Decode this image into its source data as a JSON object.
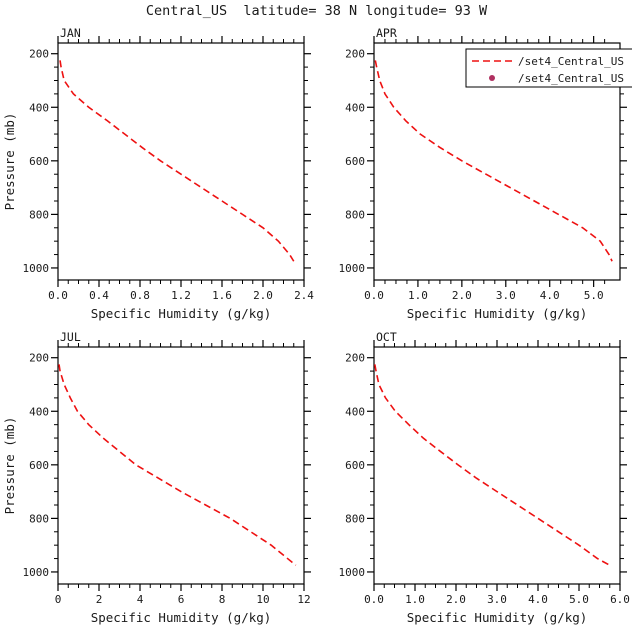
{
  "title": "Central_US  latitude= 38 N longitude= 93 W",
  "style": {
    "curve": "#ee1111",
    "legend_marker": "#b03060",
    "axis": "#000000",
    "text": "#1a1a1a",
    "background": "#ffffff"
  },
  "legend": {
    "panel_label": "APR",
    "entries": [
      {
        "marker": "dashed-line",
        "label": "/set4_Central_US"
      },
      {
        "marker": "dot",
        "label": "/set4_Central_US"
      }
    ]
  },
  "chart_data": [
    {
      "type": "line",
      "panel_label": "JAN",
      "xlabel": "Specific Humidity (g/kg)",
      "ylabel": "Pressure (mb)",
      "xlim": [
        0,
        2.4
      ],
      "xticks": [
        0,
        0.4,
        0.8,
        1.2,
        1.6,
        2.0,
        2.4
      ],
      "xtick_labels": [
        "0.0",
        "0.4",
        "0.8",
        "1.2",
        "1.6",
        "2.0",
        "2.4"
      ],
      "x_minor_step": 0.1,
      "ylim": [
        160,
        1045
      ],
      "yticks": [
        200,
        400,
        600,
        800,
        1000
      ],
      "ytick_labels": [
        "200",
        "400",
        "600",
        "800",
        "1000"
      ],
      "y_minor_step": 50,
      "series": [
        {
          "name": "/set4_Central_US",
          "style": "dashed",
          "pressure_mb": [
            225,
            250,
            300,
            350,
            400,
            450,
            500,
            550,
            600,
            650,
            700,
            750,
            800,
            850,
            900,
            950,
            975
          ],
          "specific_humidity_g_per_kg": [
            0.02,
            0.03,
            0.06,
            0.15,
            0.3,
            0.48,
            0.65,
            0.82,
            1.0,
            1.2,
            1.4,
            1.6,
            1.8,
            2.0,
            2.15,
            2.26,
            2.3
          ]
        }
      ]
    },
    {
      "type": "line",
      "panel_label": "APR",
      "xlabel": "Specific Humidity (g/kg)",
      "ylabel": "",
      "xlim": [
        0,
        5.6
      ],
      "xticks": [
        0,
        1.0,
        2.0,
        3.0,
        4.0,
        5.0
      ],
      "xtick_labels": [
        "0.0",
        "1.0",
        "2.0",
        "3.0",
        "4.0",
        "5.0"
      ],
      "x_minor_step": 0.25,
      "ylim": [
        160,
        1045
      ],
      "yticks": [
        200,
        400,
        600,
        800,
        1000
      ],
      "ytick_labels": [
        "200",
        "400",
        "600",
        "800",
        "1000"
      ],
      "y_minor_step": 50,
      "series": [
        {
          "name": "/set4_Central_US",
          "style": "dashed",
          "pressure_mb": [
            225,
            250,
            300,
            350,
            400,
            450,
            500,
            550,
            600,
            650,
            700,
            750,
            800,
            850,
            900,
            950,
            975
          ],
          "specific_humidity_g_per_kg": [
            0.03,
            0.06,
            0.13,
            0.25,
            0.45,
            0.72,
            1.05,
            1.5,
            2.0,
            2.55,
            3.1,
            3.65,
            4.2,
            4.75,
            5.15,
            5.35,
            5.42
          ]
        }
      ]
    },
    {
      "type": "line",
      "panel_label": "JUL",
      "xlabel": "Specific Humidity (g/kg)",
      "ylabel": "Pressure (mb)",
      "xlim": [
        0,
        12
      ],
      "xticks": [
        0,
        2,
        4,
        6,
        8,
        10,
        12
      ],
      "xtick_labels": [
        "0",
        "2",
        "4",
        "6",
        "8",
        "10",
        "12"
      ],
      "x_minor_step": 0.5,
      "ylim": [
        160,
        1045
      ],
      "yticks": [
        200,
        400,
        600,
        800,
        1000
      ],
      "ytick_labels": [
        "200",
        "400",
        "600",
        "800",
        "1000"
      ],
      "y_minor_step": 50,
      "series": [
        {
          "name": "/set4_Central_US",
          "style": "dashed",
          "pressure_mb": [
            225,
            250,
            300,
            350,
            400,
            450,
            500,
            550,
            600,
            650,
            700,
            750,
            800,
            850,
            900,
            950,
            975
          ],
          "specific_humidity_g_per_kg": [
            0.05,
            0.1,
            0.3,
            0.6,
            0.95,
            1.5,
            2.2,
            3.0,
            3.8,
            4.9,
            6.0,
            7.2,
            8.4,
            9.4,
            10.4,
            11.2,
            11.6
          ]
        }
      ]
    },
    {
      "type": "line",
      "panel_label": "OCT",
      "xlabel": "Specific Humidity (g/kg)",
      "ylabel": "",
      "xlim": [
        0,
        6.0
      ],
      "xticks": [
        0,
        1.0,
        2.0,
        3.0,
        4.0,
        5.0,
        6.0
      ],
      "xtick_labels": [
        "0.0",
        "1.0",
        "2.0",
        "3.0",
        "4.0",
        "5.0",
        "6.0"
      ],
      "x_minor_step": 0.25,
      "ylim": [
        160,
        1045
      ],
      "yticks": [
        200,
        400,
        600,
        800,
        1000
      ],
      "ytick_labels": [
        "200",
        "400",
        "600",
        "800",
        "1000"
      ],
      "y_minor_step": 50,
      "series": [
        {
          "name": "/set4_Central_US",
          "style": "dashed",
          "pressure_mb": [
            225,
            250,
            300,
            350,
            400,
            450,
            500,
            550,
            600,
            650,
            700,
            750,
            800,
            850,
            900,
            950,
            975
          ],
          "specific_humidity_g_per_kg": [
            0.02,
            0.05,
            0.12,
            0.28,
            0.52,
            0.85,
            1.2,
            1.62,
            2.05,
            2.5,
            3.0,
            3.5,
            4.0,
            4.5,
            5.0,
            5.45,
            5.75
          ]
        }
      ]
    }
  ]
}
